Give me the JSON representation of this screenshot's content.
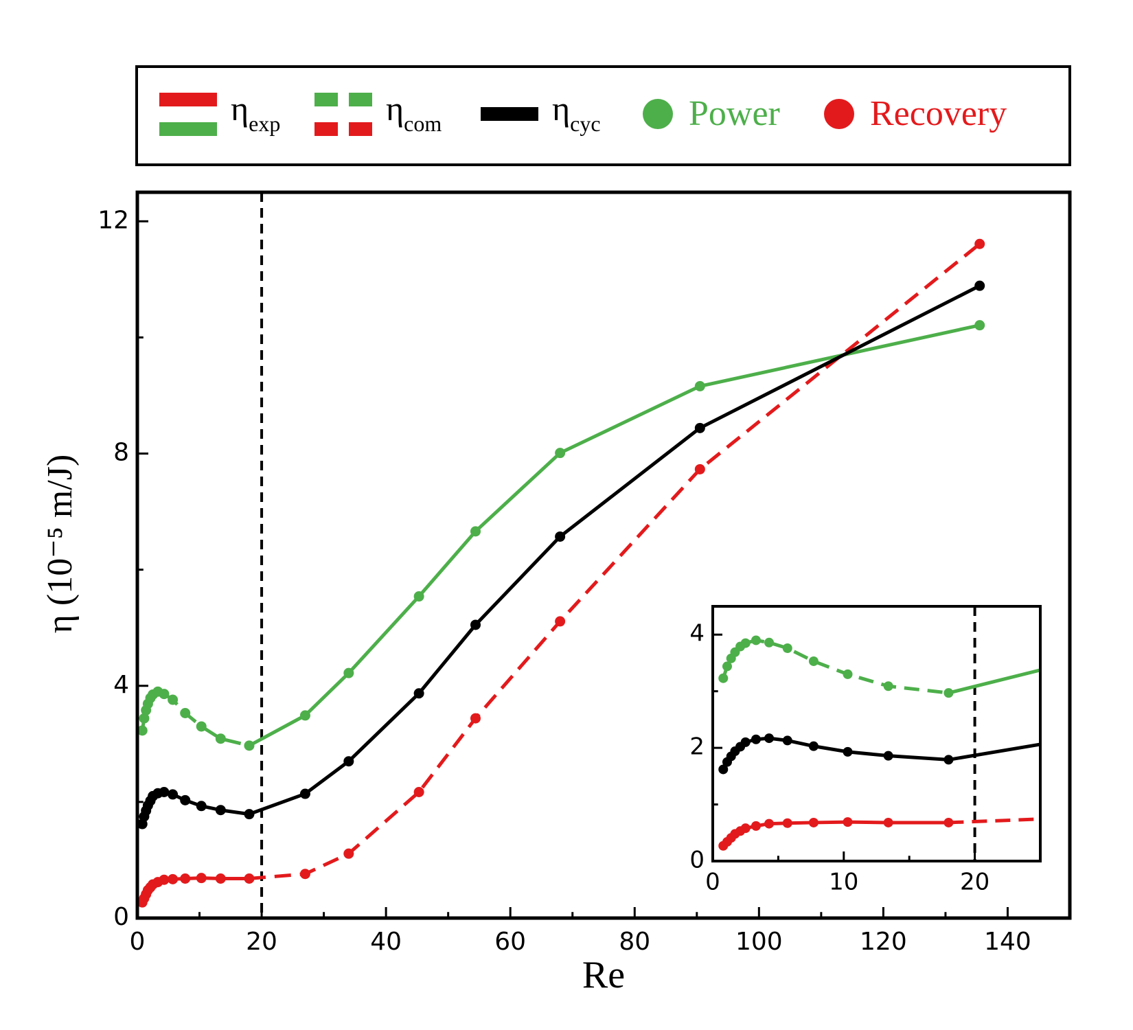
{
  "chart_data": {
    "type": "line",
    "x_label": "Re",
    "y_label": "η (10⁻⁵ m/J)",
    "xlim": [
      0,
      150
    ],
    "ylim": [
      0,
      12.5
    ],
    "xticks": [
      0,
      20,
      40,
      60,
      80,
      100,
      120,
      140
    ],
    "yticks": [
      0,
      4,
      8,
      12
    ],
    "xminorticks": [
      10,
      30,
      50,
      70,
      90,
      110,
      130
    ],
    "yminorticks": [
      2,
      6,
      10
    ],
    "vline_x": 20,
    "series": [
      {
        "name": "Power",
        "color": "#4daf4a",
        "styles": [
          "dashed",
          "solid"
        ],
        "style_break_index": 12,
        "x": [
          0.8,
          1.1,
          1.4,
          1.7,
          2.1,
          2.5,
          3.3,
          4.3,
          5.7,
          7.7,
          10.3,
          13.4,
          18,
          27,
          34,
          45.3,
          54.4,
          68,
          90.5,
          135.5
        ],
        "values": [
          3.23,
          3.44,
          3.58,
          3.69,
          3.79,
          3.85,
          3.9,
          3.86,
          3.76,
          3.53,
          3.3,
          3.09,
          2.97,
          3.49,
          4.22,
          5.54,
          6.66,
          8.01,
          9.16,
          10.21
        ]
      },
      {
        "name": "Recovery",
        "color": "#e31a1c",
        "styles": [
          "solid",
          "dashed"
        ],
        "style_break_index": 12,
        "x": [
          0.8,
          1.1,
          1.4,
          1.7,
          2.1,
          2.5,
          3.3,
          4.3,
          5.7,
          7.7,
          10.3,
          13.4,
          18,
          27,
          34,
          45.3,
          54.4,
          68,
          90.5,
          135.5
        ],
        "values": [
          0.27,
          0.34,
          0.41,
          0.48,
          0.53,
          0.58,
          0.62,
          0.66,
          0.67,
          0.68,
          0.69,
          0.68,
          0.68,
          0.76,
          1.11,
          2.17,
          3.44,
          5.11,
          7.73,
          11.61
        ]
      },
      {
        "color": "#000000",
        "styles": [
          "solid"
        ],
        "x": [
          0.8,
          1.1,
          1.4,
          1.7,
          2.1,
          2.5,
          3.3,
          4.3,
          5.7,
          7.7,
          10.3,
          13.4,
          18,
          27,
          34,
          45.3,
          54.4,
          68,
          90.5,
          135.5
        ],
        "values": [
          1.62,
          1.75,
          1.85,
          1.94,
          2.02,
          2.1,
          2.15,
          2.17,
          2.13,
          2.03,
          1.93,
          1.86,
          1.79,
          2.14,
          2.7,
          3.87,
          5.05,
          6.57,
          8.44,
          10.89
        ]
      }
    ],
    "legend": {
      "lines": [
        {
          "text": "η",
          "sub": "exp",
          "colors": [
            "#e31a1c",
            "#4daf4a"
          ],
          "style": "solid"
        },
        {
          "text": "η",
          "sub": "com",
          "colors": [
            "#4daf4a",
            "#e31a1c"
          ],
          "style": "dashed"
        },
        {
          "text": "η",
          "sub": "cyc",
          "colors": [
            "#000000"
          ],
          "style": "solid"
        }
      ]
    },
    "inset": {
      "xlim": [
        0,
        25
      ],
      "ylim": [
        0,
        4.5
      ],
      "xticks": [
        0,
        10,
        20
      ],
      "yticks": [
        0,
        2,
        4
      ],
      "xminorticks": [
        5,
        15
      ],
      "yminorticks": [
        1,
        3
      ],
      "vline_x": 20
    }
  }
}
